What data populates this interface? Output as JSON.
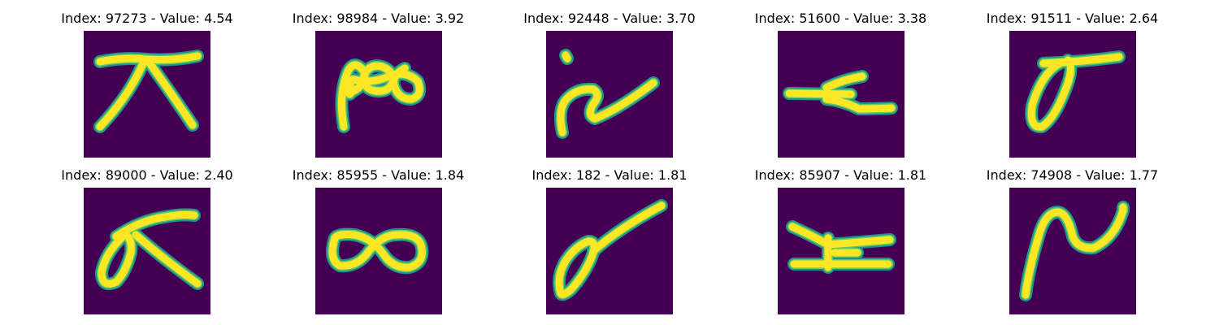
{
  "colors": {
    "background": "#440154",
    "stroke_edge": "#21918c",
    "stroke_mid": "#5ec962",
    "stroke_core": "#fde725"
  },
  "panels": [
    {
      "title": "Index: 97273 - Value: 4.54",
      "glyph": "symbol-x-with-bar"
    },
    {
      "title": "Index: 98984 - Value: 3.92",
      "glyph": "symbol-double-loop"
    },
    {
      "title": "Index: 92448 - Value: 3.70",
      "glyph": "symbol-hook-stroke"
    },
    {
      "title": "Index: 51600 - Value: 3.38",
      "glyph": "symbol-double-bar"
    },
    {
      "title": "Index: 91511 - Value: 2.64",
      "glyph": "symbol-loop-with-bar"
    },
    {
      "title": "Index: 89000 - Value: 2.40",
      "glyph": "symbol-loop-with-bar-leg"
    },
    {
      "title": "Index: 85955 - Value: 1.84",
      "glyph": "symbol-infinity"
    },
    {
      "title": "Index: 182 - Value: 1.81",
      "glyph": "symbol-loop-diagonal"
    },
    {
      "title": "Index: 85907 - Value: 1.81",
      "glyph": "symbol-h-bars"
    },
    {
      "title": "Index: 74908 - Value: 1.77",
      "glyph": "symbol-n-curve"
    }
  ]
}
